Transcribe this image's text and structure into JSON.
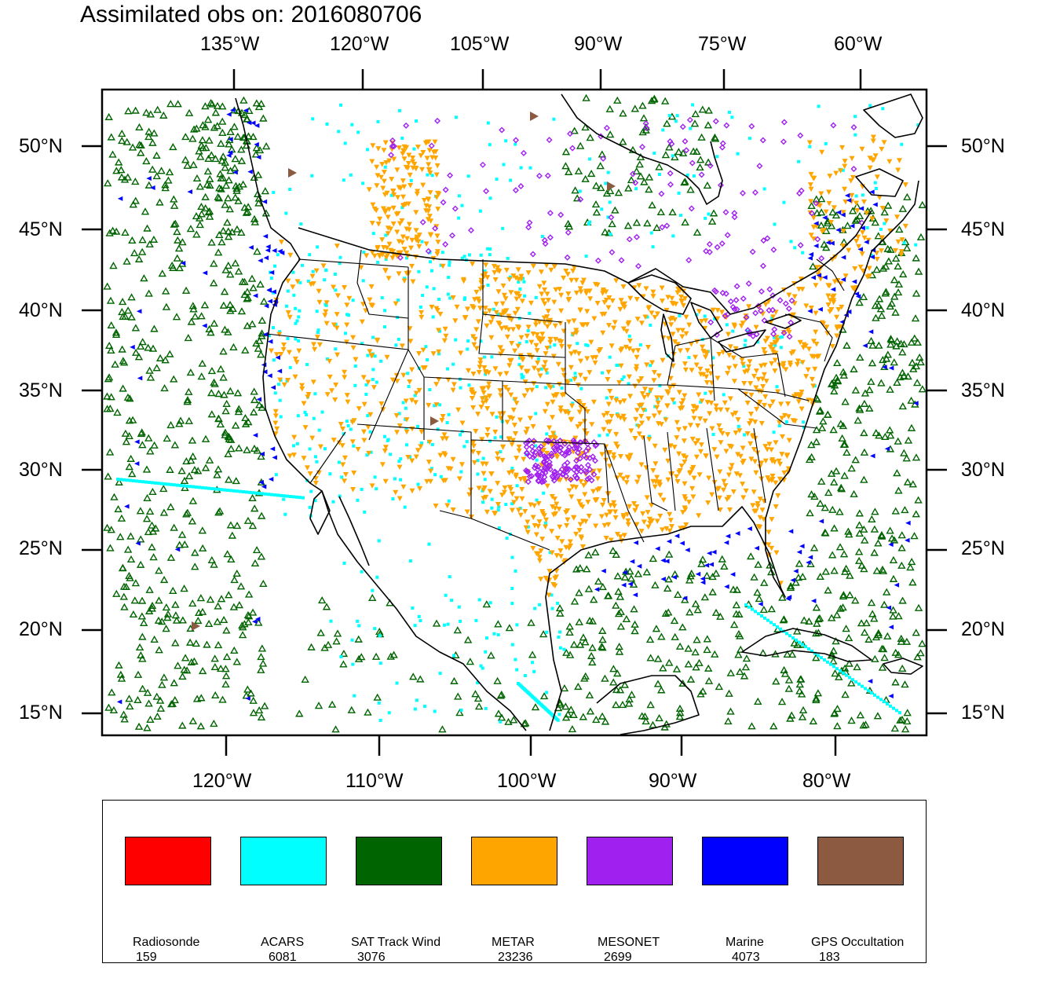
{
  "title": "Assimilated obs on: 2016080706",
  "axes": {
    "top_lon_labels": [
      "135°W",
      "120°W",
      "105°W",
      "90°W",
      "75°W",
      "60°W"
    ],
    "bottom_lon_labels": [
      "120°W",
      "110°W",
      "100°W",
      "90°W",
      "80°W"
    ],
    "lat_labels": [
      "50°N",
      "45°N",
      "40°N",
      "35°N",
      "30°N",
      "25°N",
      "20°N",
      "15°N"
    ]
  },
  "map": {
    "region": "North America / CONUS",
    "lat_range": [
      14,
      53
    ],
    "lon_range": [
      -128,
      -74
    ],
    "land_color": "#ffffff",
    "boundary_color": "#000000"
  },
  "legend": {
    "items": [
      {
        "name": "Radiosonde",
        "count": "159",
        "color": "#ff0000"
      },
      {
        "name": "ACARS",
        "count": "6081",
        "color": "#00ffff"
      },
      {
        "name": "SAT Track Wind",
        "count": "3076",
        "color": "#006400"
      },
      {
        "name": "METAR",
        "count": "23236",
        "color": "#ffa500"
      },
      {
        "name": "MESONET",
        "count": "2699",
        "color": "#a020f0"
      },
      {
        "name": "Marine",
        "count": "4073",
        "color": "#0000ff"
      },
      {
        "name": "GPS Occultation",
        "count": "183",
        "color": "#8b5a40"
      }
    ]
  },
  "symbols": {
    "ACARS": "square",
    "SAT Track Wind": "triangle-up-open",
    "METAR": "triangle-down",
    "MESONET": "diamond-open",
    "Marine": "triangle-left",
    "GPS Occultation": "triangle-right"
  }
}
